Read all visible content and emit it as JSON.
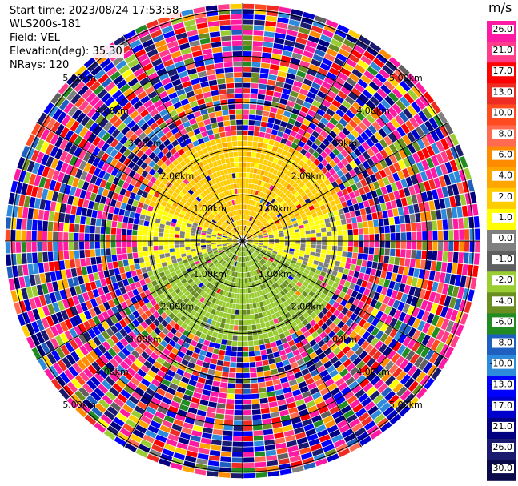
{
  "info": {
    "start_time": "Start time: 2023/08/24 17:53:58",
    "instrument": "WLS200s-181",
    "field": "Field: VEL",
    "elevation": "Elevation(deg): 35.30",
    "nrays": "NRays: 120"
  },
  "range_labels": [
    "1.00km",
    "2.00km",
    "3.00km",
    "4.00km",
    "5.00km"
  ],
  "colorbar": {
    "unit": "m/s",
    "ticks": [
      "26.0",
      "21.0",
      "17.0",
      "13.0",
      "10.0",
      "8.0",
      "6.0",
      "4.0",
      "2.0",
      "1.0",
      "0.0",
      "-1.0",
      "-2.0",
      "-4.0",
      "-6.0",
      "-8.0",
      "-10.0",
      "-13.0",
      "-17.0",
      "-21.0",
      "-26.0",
      "-30.0"
    ],
    "colors": [
      "#ff1aa3",
      "#ff3d8a",
      "#ff0000",
      "#ee2c22",
      "#ff4b1f",
      "#ff6a50",
      "#ff8c00",
      "#ffa500",
      "#ffcc00",
      "#ffff00",
      "#808080",
      "#606060",
      "#9acd32",
      "#6b8e23",
      "#228b22",
      "#1e5fbf",
      "#2e8bdc",
      "#0000ff",
      "#0000cd",
      "#000080",
      "#1a1a6e",
      "#0a0a4a"
    ]
  },
  "chart_data": {
    "type": "heatmap",
    "projection": "polar PPI",
    "field": "VEL",
    "units": "m/s",
    "nrays": 120,
    "max_range_km": 5.15,
    "range_rings_km": [
      1,
      2,
      3,
      4,
      5
    ],
    "value_range": [
      -30,
      30
    ],
    "colorbar_ticks": [
      26,
      21,
      17,
      13,
      10,
      8,
      6,
      4,
      2,
      1,
      0,
      -1,
      -2,
      -4,
      -6,
      -8,
      -10,
      -13,
      -17,
      -21,
      -26,
      -30
    ],
    "pattern": {
      "near_range_km": 2.3,
      "north_half_velocity": "approx +1 to +2 m/s (yellow)",
      "south_half_velocity": "approx -2 to -6 m/s (green)",
      "east_west_velocity": "approx 0 m/s (gray)",
      "far_range": "noise over full scale -30 to 30 m/s"
    }
  }
}
